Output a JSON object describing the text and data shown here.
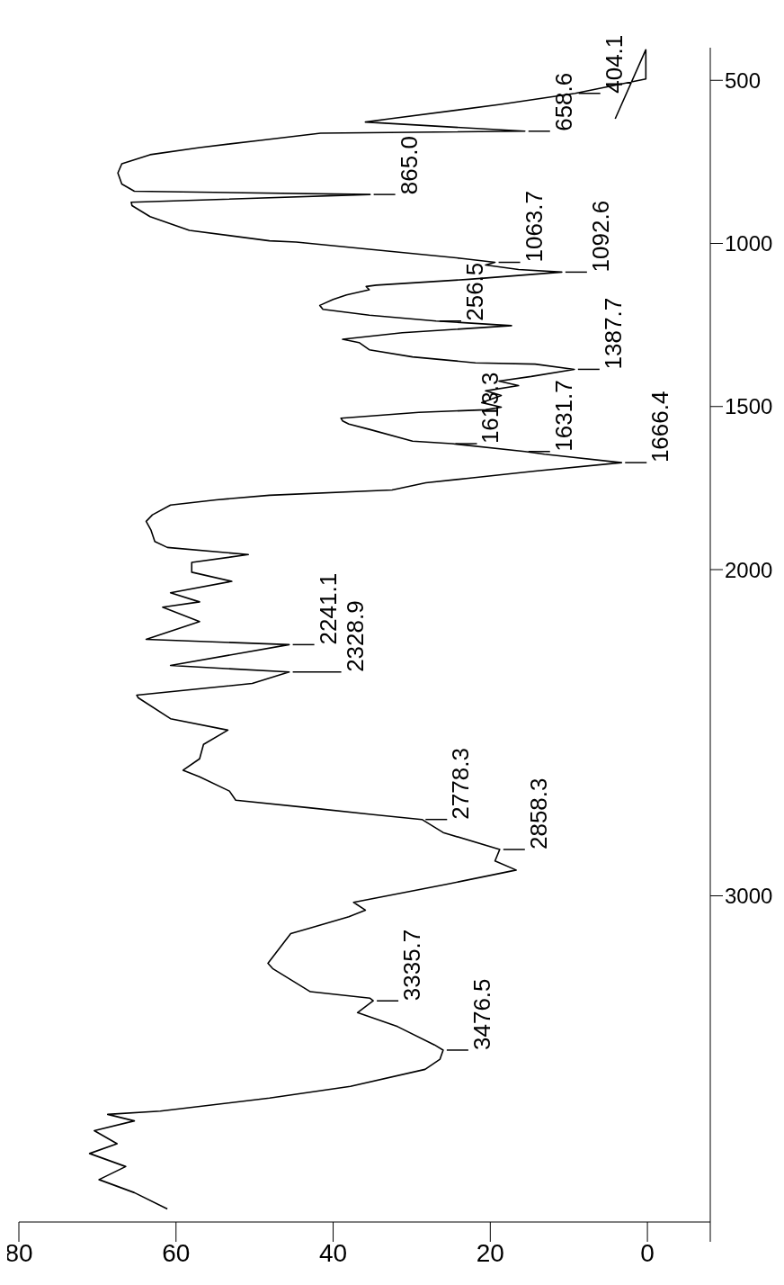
{
  "chart_data": {
    "type": "line",
    "ylim": [
      4000,
      400
    ],
    "yticks": [
      500,
      1000,
      1500,
      2000,
      3000
    ],
    "xlim": [
      80,
      -8
    ],
    "xticks": [
      80,
      60,
      40,
      20,
      0,
      {
        "value": -8,
        "label": null
      }
    ],
    "series": [
      {
        "color": "#000000",
        "values": [
          3960,
          3910,
          3870,
          3830,
          3790,
          3760,
          3720,
          3690,
          3670,
          3660,
          3620,
          3584,
          3532,
          3501,
          3473,
          3457,
          3401,
          3358,
          3322,
          3314,
          3294,
          3223,
          3207,
          3116,
          3100,
          3064,
          3044,
          3020,
          2965,
          2921,
          2893,
          2858,
          2806,
          2766,
          2751,
          2730,
          2707,
          2679,
          2635,
          2615,
          2580,
          2536,
          2492,
          2457,
          2393,
          2385,
          2349,
          2314,
          2294,
          2230,
          2214,
          2159,
          2115,
          2099,
          2071,
          2036,
          2008,
          1978,
          1954,
          1932,
          1914,
          1878,
          1852,
          1832,
          1802,
          1786,
          1772,
          1756,
          1734,
          1720,
          1698,
          1672,
          1646,
          1638,
          1614,
          1606,
          1570,
          1554,
          1544,
          1536,
          1518,
          1510,
          1502,
          1488,
          1466,
          1452,
          1436,
          1422,
          1408,
          1386,
          1370,
          1366,
          1348,
          1326,
          1304,
          1294,
          1274,
          1252,
          1238,
          1220,
          1202,
          1190,
          1172,
          1158,
          1142,
          1132,
          1128,
          1110,
          1088,
          1080,
          1066,
          1058,
          1046,
          1018,
          996,
          992,
          960,
          918,
          884,
          874,
          850,
          840,
          818,
          784,
          756,
          728,
          706,
          684,
          662,
          656,
          628,
          618,
          574,
          540,
          496,
          406,
          618
        ],
        "x": [
          61.1,
          65.3,
          69.8,
          66.4,
          71.0,
          67.5,
          70.4,
          65.3,
          68.7,
          62.0,
          48.1,
          37.8,
          28.3,
          26.4,
          26.0,
          27.1,
          31.8,
          36.9,
          34.9,
          35.3,
          42.9,
          47.7,
          48.3,
          45.4,
          43.1,
          38.0,
          35.9,
          37.4,
          25.6,
          16.7,
          19.4,
          18.8,
          26.0,
          28.7,
          34.9,
          43.1,
          52.4,
          53.2,
          57.0,
          59.1,
          57.0,
          56.5,
          53.4,
          60.7,
          64.8,
          65.0,
          50.3,
          45.6,
          60.7,
          45.6,
          63.8,
          57.0,
          61.7,
          57.0,
          60.7,
          52.9,
          58.0,
          58.0,
          50.8,
          61.1,
          62.7,
          63.2,
          63.8,
          63.0,
          60.7,
          54.9,
          48.1,
          32.5,
          28.2,
          22.8,
          14.3,
          3.3,
          13.1,
          15.6,
          24.9,
          29.9,
          35.4,
          38.0,
          38.8,
          39.0,
          29.1,
          20.6,
          18.6,
          21.1,
          18.6,
          20.6,
          16.4,
          18.9,
          14.8,
          9.3,
          14.3,
          21.9,
          29.9,
          35.4,
          36.7,
          38.8,
          31.2,
          17.3,
          26.9,
          35.4,
          41.3,
          41.7,
          40.0,
          38.3,
          35.4,
          35.8,
          34.5,
          22.7,
          10.9,
          16.4,
          20.6,
          19.4,
          23.6,
          35.4,
          44.7,
          48.1,
          58.3,
          63.3,
          65.6,
          65.7,
          35.3,
          65.3,
          66.9,
          67.4,
          66.9,
          63.3,
          57.0,
          49.3,
          41.6,
          15.6,
          35.9,
          32.8,
          18.7,
          9.2,
          0.2,
          0.2,
          4.1
        ]
      }
    ],
    "annotations": [
      {
        "text": "404.1",
        "y": 540,
        "x": 9.2
      },
      {
        "text": "658.6",
        "y": 656,
        "x": 15.6
      },
      {
        "text": "865.0",
        "y": 850,
        "x": 35.3
      },
      {
        "text": "1063.7",
        "y": 1058,
        "x": 19.4
      },
      {
        "text": "1092.6",
        "y": 1088,
        "x": 10.9
      },
      {
        "text": "256.5",
        "y": 1238,
        "x": 26.9
      },
      {
        "text": "1387.7",
        "y": 1386,
        "x": 9.3
      },
      {
        "text": "1613.3",
        "y": 1614,
        "x": 24.9
      },
      {
        "text": "1631.7",
        "y": 1638,
        "x": 15.6
      },
      {
        "text": "1666.4",
        "y": 1672,
        "x": 3.3
      },
      {
        "text": "2241.1",
        "y": 2230,
        "x": 45.6
      },
      {
        "text": "2328.9",
        "y": 2314,
        "x": 45.6
      },
      {
        "text": "2778.3",
        "y": 2766,
        "x": 28.7
      },
      {
        "text": "2858.3",
        "y": 2858,
        "x": 18.8
      },
      {
        "text": "3335.7",
        "y": 3322,
        "x": 34.9
      },
      {
        "text": "3476.5",
        "y": 3473,
        "x": 26.0
      }
    ]
  }
}
